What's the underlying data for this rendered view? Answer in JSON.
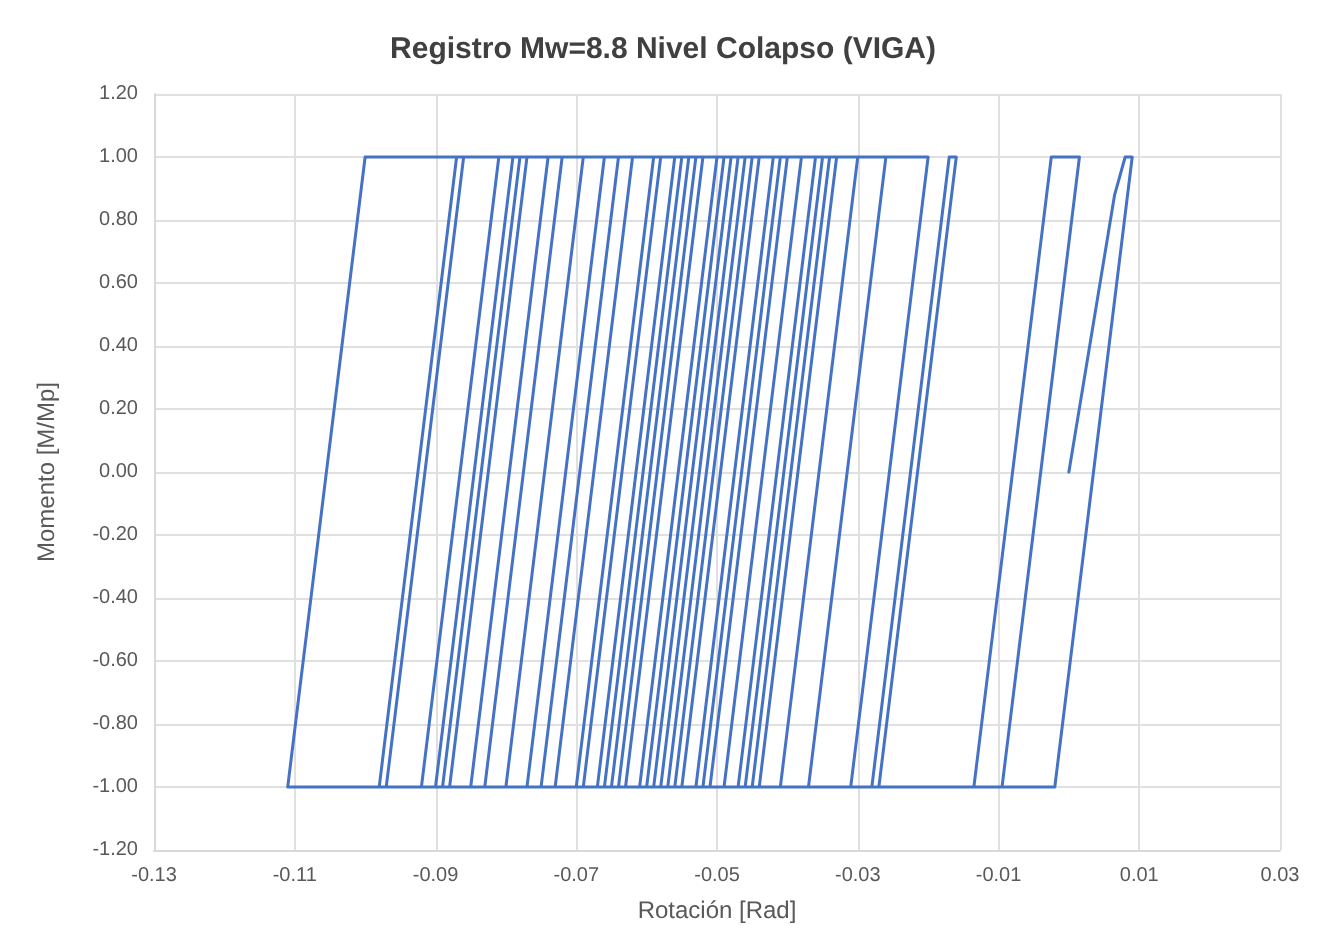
{
  "chart_data": {
    "type": "line",
    "title": "Registro Mw=8.8 Nivel Colapso (VIGA)",
    "xlabel": "Rotación [Rad]",
    "ylabel": "Momento [M/Mp]",
    "xlim": [
      -0.13,
      0.03
    ],
    "xticks": [
      -0.13,
      -0.11,
      -0.09,
      -0.07,
      -0.05,
      -0.03,
      -0.01,
      0.01,
      0.03
    ],
    "ylim": [
      -1.2,
      1.2
    ],
    "yticks": [
      {
        "value": -1.2,
        "label": "-1.20"
      },
      {
        "value": -1,
        "label": "-1.00"
      },
      {
        "value": -0.8,
        "label": "-0.80"
      },
      {
        "value": -0.6,
        "label": "-0.60"
      },
      {
        "value": -0.4,
        "label": "-0.40"
      },
      {
        "value": -0.2,
        "label": "-0.20"
      },
      {
        "value": 0,
        "label": "0.00"
      },
      {
        "value": 0.2,
        "label": "0.20"
      },
      {
        "value": 0.4,
        "label": "0.40"
      },
      {
        "value": 0.6,
        "label": "0.60"
      },
      {
        "value": 0.8,
        "label": "0.80"
      },
      {
        "value": 1,
        "label": "1.00"
      },
      {
        "value": 1.2,
        "label": "1.20"
      }
    ],
    "grid": true,
    "marker": "none",
    "line_style": "solid",
    "series": [
      {
        "color": "#4472c4",
        "x": [
          0,
          0.0065,
          0.008,
          0.009,
          -0.002,
          -0.0135,
          -0.0025,
          0.0015,
          -0.0095,
          -0.028,
          -0.017,
          -0.016,
          -0.027,
          -0.045,
          -0.034,
          -0.02,
          -0.031,
          -0.06,
          -0.049,
          -0.026,
          -0.037,
          -0.052,
          -0.041,
          -0.03,
          -0.041,
          -0.07,
          -0.059,
          -0.035,
          -0.046,
          -0.057,
          -0.046,
          -0.04,
          -0.051,
          -0.069,
          -0.058,
          -0.044,
          -0.055,
          -0.088,
          -0.077,
          -0.05,
          -0.061,
          -0.075,
          -0.064,
          -0.055,
          -0.066,
          -0.098,
          -0.087,
          -0.058,
          -0.069,
          -0.08,
          -0.069,
          -0.062,
          -0.073,
          -0.092,
          -0.081,
          -0.064,
          -0.075,
          -0.085,
          -0.074,
          -0.047,
          -0.058,
          -0.066,
          -0.055,
          -0.052,
          -0.063,
          -0.077,
          -0.066,
          -0.048,
          -0.059,
          -0.07,
          -0.059,
          -0.054,
          -0.065,
          -0.083,
          -0.072,
          -0.038,
          -0.049,
          -0.061,
          -0.05,
          -0.042,
          -0.053,
          -0.067,
          -0.056,
          -0.033,
          -0.044,
          -0.057,
          -0.046,
          -0.036,
          -0.047,
          -0.064,
          -0.053,
          -0.045,
          -0.056,
          -0.097,
          -0.086,
          -0.056,
          -0.067,
          -0.09,
          -0.079,
          -0.078,
          -0.089,
          -0.111,
          -0.1,
          -0.086
        ],
        "values": [
          0,
          0.88,
          1,
          1,
          -1,
          -1,
          1,
          1,
          -1,
          -1,
          1,
          1,
          -1,
          -1,
          1,
          1,
          -1,
          -1,
          1,
          1,
          -1,
          -1,
          1,
          1,
          -1,
          -1,
          1,
          1,
          -1,
          -1,
          1,
          1,
          -1,
          -1,
          1,
          1,
          -1,
          -1,
          1,
          1,
          -1,
          -1,
          1,
          1,
          -1,
          -1,
          1,
          1,
          -1,
          -1,
          1,
          1,
          -1,
          -1,
          1,
          1,
          -1,
          -1,
          1,
          1,
          -1,
          -1,
          1,
          1,
          -1,
          -1,
          1,
          1,
          -1,
          -1,
          1,
          1,
          -1,
          -1,
          1,
          1,
          -1,
          -1,
          1,
          1,
          -1,
          -1,
          1,
          1,
          -1,
          -1,
          1,
          1,
          -1,
          -1,
          1,
          1,
          -1,
          -1,
          1,
          1,
          -1,
          -1,
          1,
          1,
          -1,
          -1,
          1,
          1
        ]
      }
    ]
  }
}
